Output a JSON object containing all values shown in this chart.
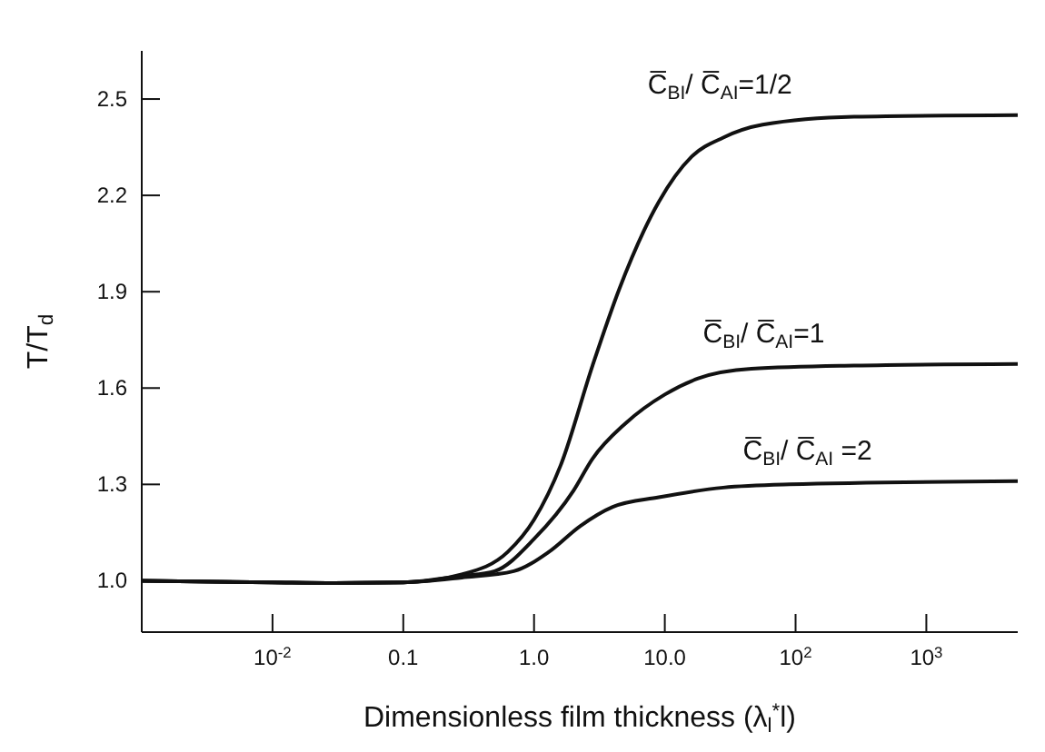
{
  "chart_data": {
    "type": "line",
    "xlabel": "Dimensionless film thickness (λ$_{l}$$^{*}$l)",
    "ylabel": "T/T$_{d}$",
    "log": "x",
    "xlim": [
      0.001,
      5000
    ],
    "ylim": [
      0.84,
      2.65
    ],
    "xticks": [
      {
        "value": 0.01,
        "label": "10$^{-2}$"
      },
      {
        "value": 0.1,
        "label": "0.1"
      },
      {
        "value": 1,
        "label": "1.0"
      },
      {
        "value": 10,
        "label": "10.0"
      },
      {
        "value": 100,
        "label": "10$^{2}$"
      },
      {
        "value": 1000,
        "label": "10$^{3}$"
      }
    ],
    "yticks": [
      {
        "value": 1.0,
        "label": "1.0"
      },
      1.3,
      1.6,
      1.9,
      2.2,
      2.5
    ],
    "grid": false,
    "legend": false,
    "marker": "none",
    "line_style": "solid",
    "series": [
      {
        "color": "#111111",
        "x": [
          0.001,
          0.01,
          0.03,
          0.1,
          0.28,
          0.63,
          1,
          1.6,
          2.8,
          4.5,
          9,
          16,
          28,
          56,
          280,
          5000
        ],
        "values": [
          1.0,
          0.995,
          0.993,
          0.995,
          1.02,
          1.09,
          1.19,
          1.36,
          1.67,
          1.91,
          2.18,
          2.32,
          2.38,
          2.42,
          2.445,
          2.45
        ]
      },
      {
        "color": "#111111",
        "x": [
          0.001,
          0.01,
          0.03,
          0.1,
          0.28,
          0.5,
          1,
          2,
          2.8,
          5,
          10,
          18,
          46,
          280,
          5000
        ],
        "values": [
          1.0,
          0.995,
          0.993,
          0.995,
          1.015,
          1.03,
          1.13,
          1.28,
          1.38,
          1.49,
          1.58,
          1.63,
          1.66,
          1.67,
          1.675
        ]
      },
      {
        "color": "#111111",
        "x": [
          0.001,
          0.01,
          0.03,
          0.1,
          0.28,
          0.7,
          1.3,
          2.25,
          4,
          9,
          28,
          90,
          5000
        ],
        "values": [
          1.0,
          0.995,
          0.993,
          0.995,
          1.01,
          1.03,
          1.09,
          1.17,
          1.23,
          1.26,
          1.29,
          1.3,
          1.31
        ]
      }
    ],
    "annotations": [
      "C̅$_{BI}$/ C̅$_{AI}$=1/2",
      "C̅$_{BI}$/ C̅$_{AI}$=1",
      "C̅$_{BI}$/ C̅$_{AI}$ =2"
    ]
  }
}
